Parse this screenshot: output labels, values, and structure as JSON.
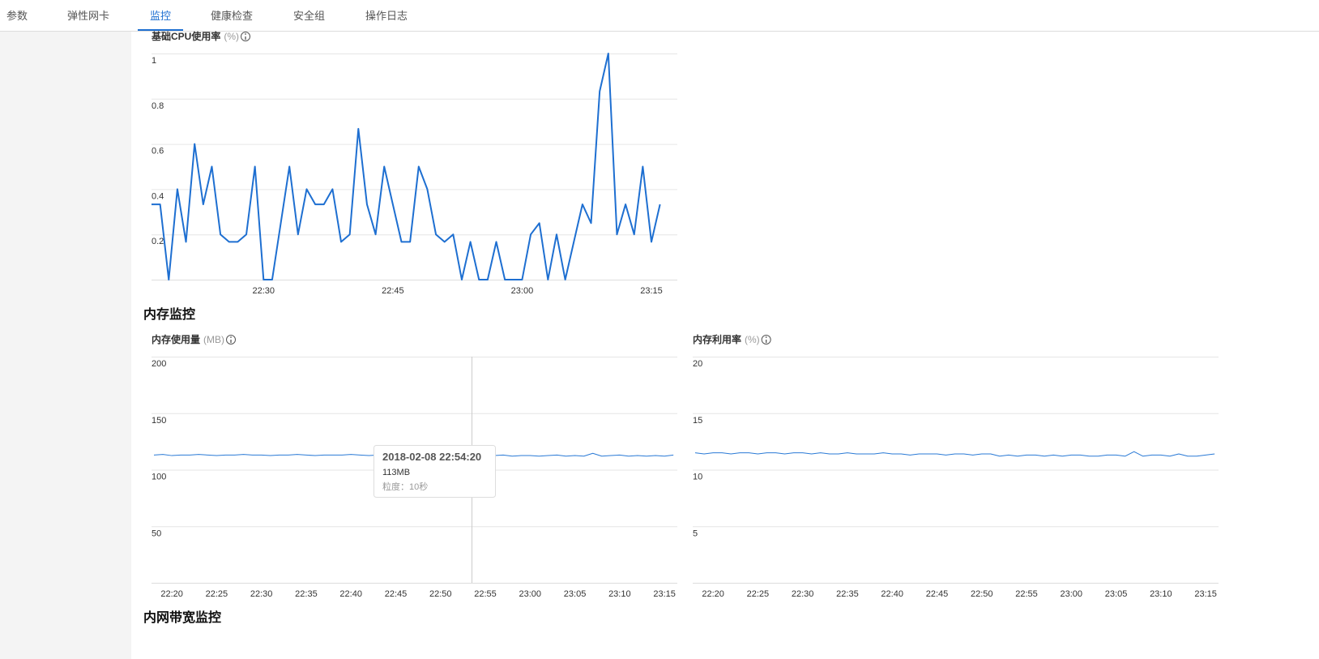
{
  "tabs": [
    "参数",
    "弹性网卡",
    "监控",
    "健康检查",
    "安全组",
    "操作日志"
  ],
  "active_tab": 2,
  "sections": [
    "内存监控",
    "内网带宽监控"
  ],
  "tooltip": {
    "time": "2018-02-08 22:54:20",
    "value": "113MB",
    "granularity": "粒度：10秒"
  },
  "chart_data": [
    {
      "type": "line",
      "title": "基础CPU使用率",
      "unit": "(%)",
      "color": "#1e6fd1",
      "grid": true,
      "ylim": [
        0,
        1
      ],
      "yticks": [
        0.2,
        0.4,
        0.6,
        0.8,
        1
      ],
      "categories": [
        null,
        null,
        null,
        null,
        null,
        null,
        null,
        null,
        null,
        null,
        null,
        null,
        null,
        "22:30",
        null,
        null,
        null,
        null,
        null,
        null,
        null,
        null,
        null,
        null,
        null,
        null,
        null,
        null,
        "22:45",
        null,
        null,
        null,
        null,
        null,
        null,
        null,
        null,
        null,
        null,
        null,
        null,
        null,
        null,
        "23:00",
        null,
        null,
        null,
        null,
        null,
        null,
        null,
        null,
        null,
        null,
        null,
        null,
        null,
        null,
        "23:15",
        null
      ],
      "values": [
        0.333,
        0.333,
        0,
        0.4,
        0.167,
        0.6,
        0.333,
        0.5,
        0.2,
        0.167,
        0.167,
        0.2,
        0.5,
        0,
        0,
        0.25,
        0.5,
        0.2,
        0.4,
        0.333,
        0.333,
        0.4,
        0.167,
        0.2,
        0.667,
        0.333,
        0.2,
        0.5,
        0.333,
        0.167,
        0.167,
        0.5,
        0.4,
        0.2,
        0.167,
        0.2,
        0,
        0.167,
        0,
        0,
        0.167,
        0,
        0,
        0,
        0.2,
        0.25,
        0,
        0.2,
        0,
        0.167,
        0.333,
        0.25,
        0.833,
        1,
        0.2,
        0.333,
        0.2,
        0.5,
        0.167,
        0.333
      ]
    },
    {
      "type": "line",
      "title": "内存使用量",
      "unit": "(MB)",
      "color": "#2a7ad6",
      "grid": true,
      "ylim": [
        0,
        200
      ],
      "yticks": [
        50,
        100,
        150,
        200
      ],
      "categories": [
        null,
        null,
        "22:20",
        null,
        null,
        null,
        null,
        "22:25",
        null,
        null,
        null,
        null,
        "22:30",
        null,
        null,
        null,
        null,
        "22:35",
        null,
        null,
        null,
        null,
        "22:40",
        null,
        null,
        null,
        null,
        "22:45",
        null,
        null,
        null,
        null,
        "22:50",
        null,
        null,
        null,
        null,
        "22:55",
        null,
        null,
        null,
        null,
        "23:00",
        null,
        null,
        null,
        null,
        "23:05",
        null,
        null,
        null,
        null,
        "23:10",
        null,
        null,
        null,
        null,
        "23:15",
        null
      ],
      "values": [
        113,
        113.5,
        112.5,
        113,
        113,
        113.5,
        113,
        112.5,
        113,
        113,
        113.5,
        113,
        113,
        112.5,
        113,
        113,
        113.5,
        113,
        112.5,
        113,
        113,
        113,
        113.5,
        113,
        112.5,
        113,
        113,
        113,
        113.5,
        113,
        112.5,
        112,
        113,
        112.5,
        112.5,
        113,
        112,
        112.5,
        112.5,
        113,
        112,
        112.5,
        112.5,
        112,
        112.5,
        113,
        112,
        112.5,
        112,
        114.5,
        112,
        112.5,
        113,
        112,
        112.5,
        112,
        112.5,
        112,
        113
      ]
    },
    {
      "type": "line",
      "title": "内存利用率",
      "unit": "(%)",
      "color": "#2a7ad6",
      "grid": true,
      "ylim": [
        0,
        20
      ],
      "yticks": [
        5,
        10,
        15,
        20
      ],
      "categories": [
        null,
        null,
        "22:20",
        null,
        null,
        null,
        null,
        "22:25",
        null,
        null,
        null,
        null,
        "22:30",
        null,
        null,
        null,
        null,
        "22:35",
        null,
        null,
        null,
        null,
        "22:40",
        null,
        null,
        null,
        null,
        "22:45",
        null,
        null,
        null,
        null,
        "22:50",
        null,
        null,
        null,
        null,
        "22:55",
        null,
        null,
        null,
        null,
        "23:00",
        null,
        null,
        null,
        null,
        "23:05",
        null,
        null,
        null,
        null,
        "23:10",
        null,
        null,
        null,
        null,
        "23:15",
        null
      ],
      "values": [
        11.5,
        11.4,
        11.5,
        11.5,
        11.4,
        11.5,
        11.5,
        11.4,
        11.5,
        11.5,
        11.4,
        11.5,
        11.5,
        11.4,
        11.5,
        11.4,
        11.4,
        11.5,
        11.4,
        11.4,
        11.4,
        11.5,
        11.4,
        11.4,
        11.3,
        11.4,
        11.4,
        11.4,
        11.3,
        11.4,
        11.4,
        11.3,
        11.4,
        11.4,
        11.2,
        11.3,
        11.2,
        11.3,
        11.3,
        11.2,
        11.3,
        11.2,
        11.3,
        11.3,
        11.2,
        11.2,
        11.3,
        11.3,
        11.2,
        11.6,
        11.2,
        11.3,
        11.3,
        11.2,
        11.4,
        11.2,
        11.2,
        11.3,
        11.4
      ]
    }
  ]
}
